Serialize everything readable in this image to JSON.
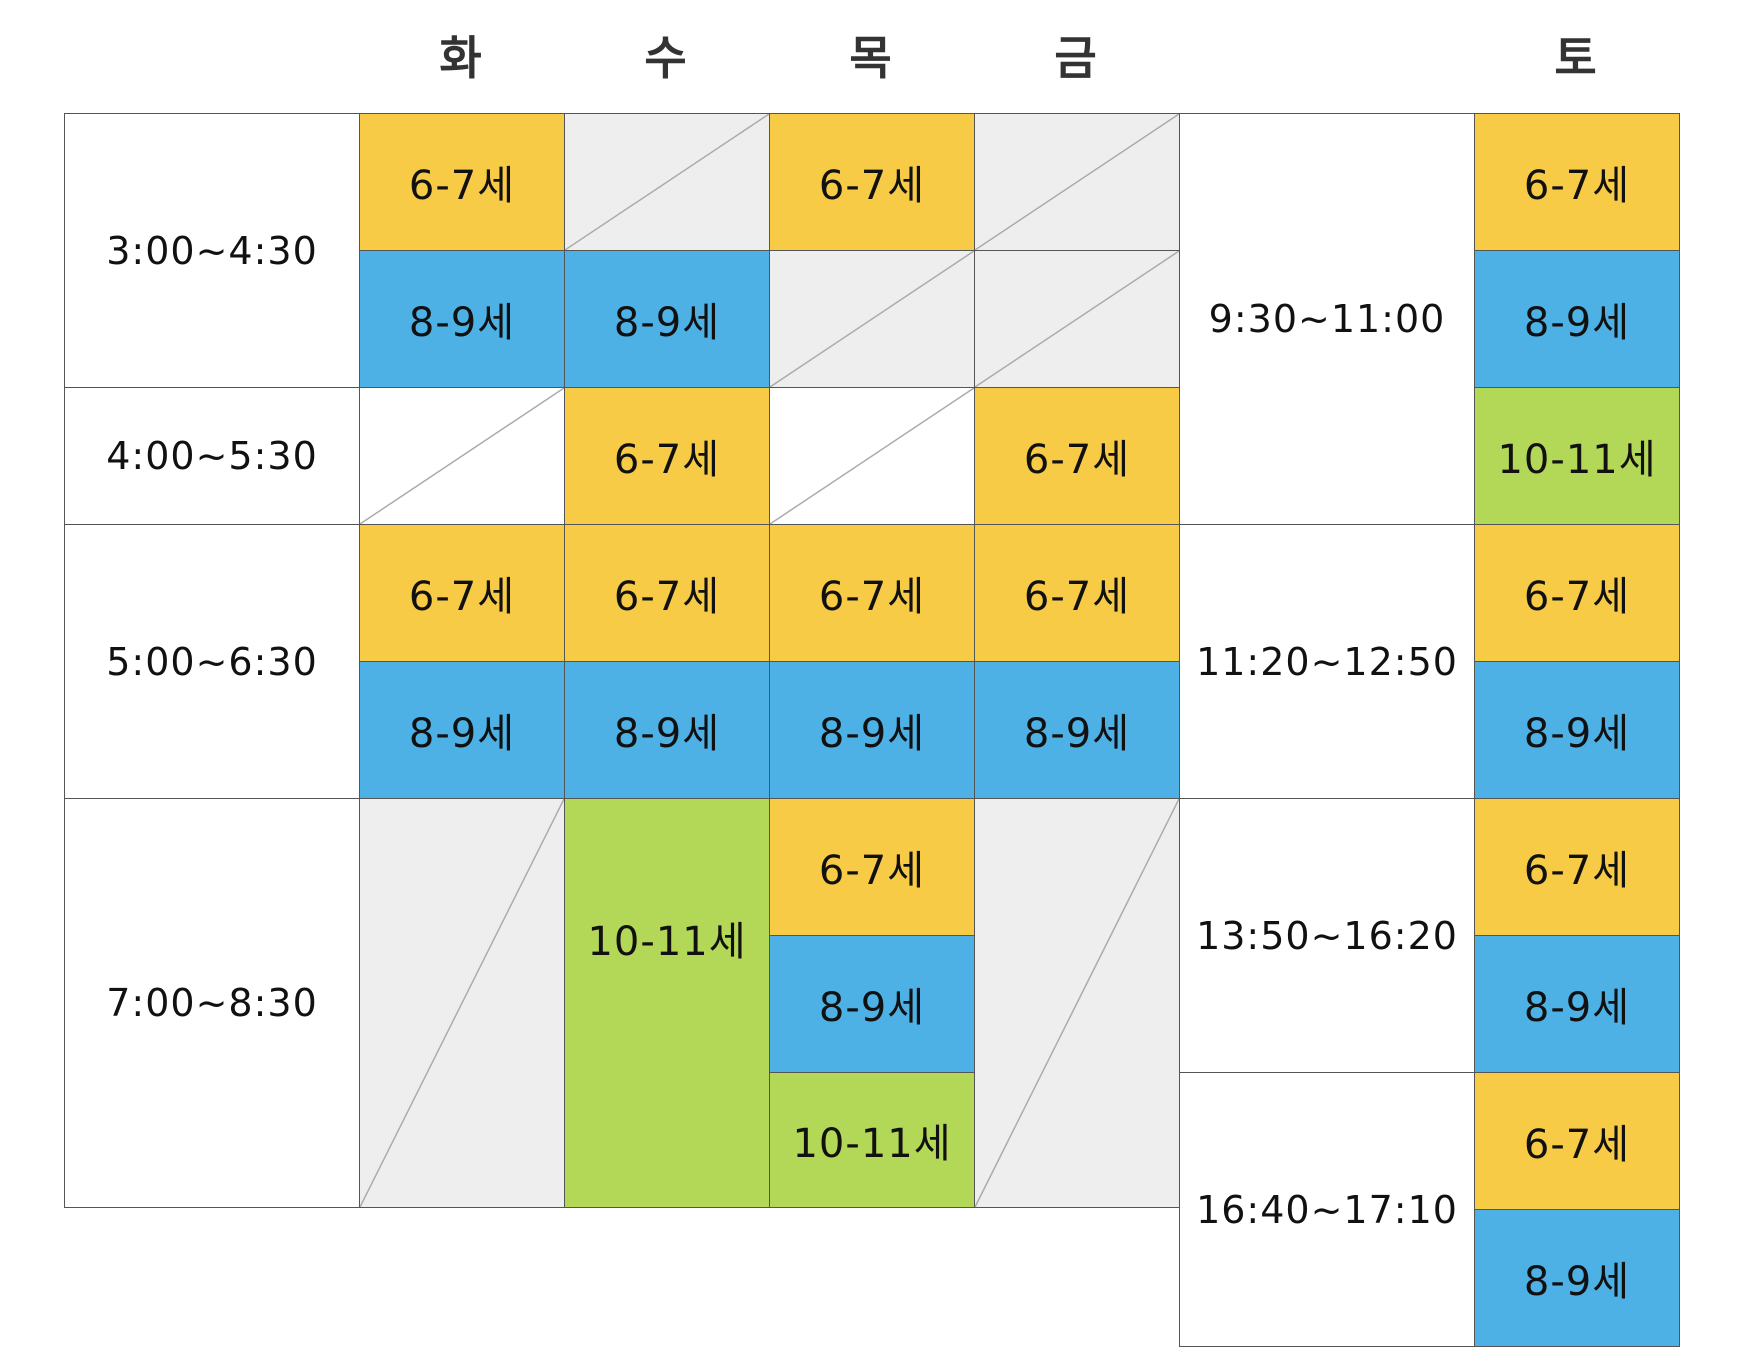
{
  "days": {
    "tue": "화",
    "wed": "수",
    "thu": "목",
    "fri": "금",
    "sat": "토"
  },
  "weekday_times": {
    "t1": "3:00~4:30",
    "t2": "4:00~5:30",
    "t3": "5:00~6:30",
    "t4": "7:00~8:30"
  },
  "saturday_times": {
    "s1": "9:30~11:00",
    "s2": "11:20~12:50",
    "s3": "13:50~16:20",
    "s4": "16:40~17:10"
  },
  "classes": {
    "age_6_7": "6-7세",
    "age_8_9": "8-9세",
    "age_10_11": "10-11세"
  },
  "colors": {
    "age_6_7": "#F7CB45",
    "age_8_9": "#4DB1E6",
    "age_10_11": "#B3D756",
    "empty": "#EEEEEE"
  }
}
